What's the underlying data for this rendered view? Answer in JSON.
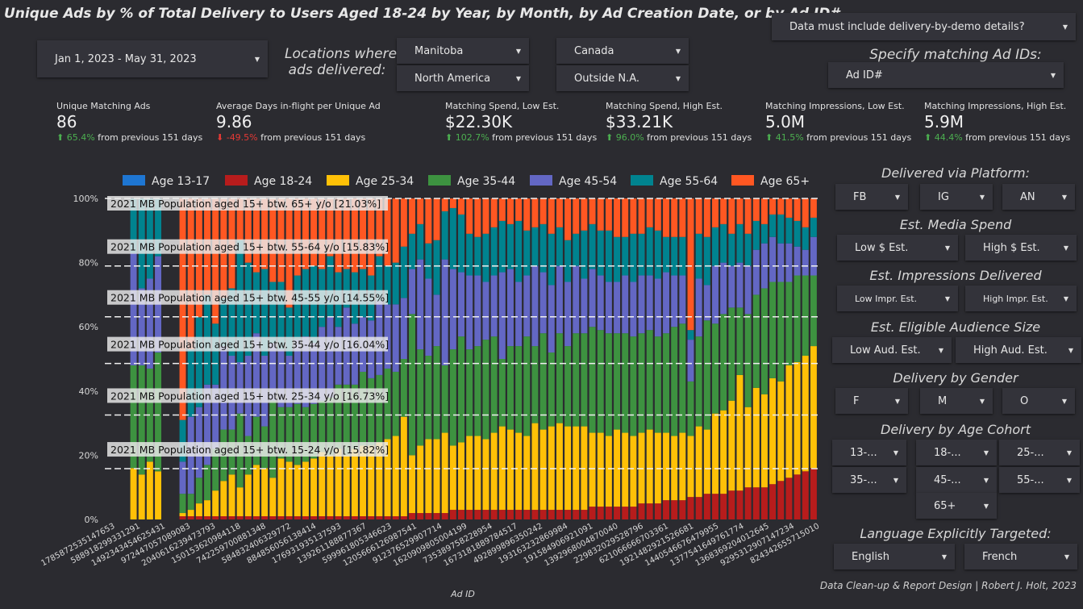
{
  "title": "Unique Ads by % of Total Delivery to Users Aged 18-24 by Year, by Month, by Ad Creation Date, or by Ad ID#",
  "date_range": "Jan 1, 2023 - May 31, 2023",
  "locations": {
    "label_line1": "Locations where",
    "label_line2": "ads delivered:",
    "manitoba": "Manitoba",
    "canada": "Canada",
    "north_america": "North America",
    "outside_na": "Outside N.A."
  },
  "demo_details": "Data must include delivery-by-demo details?",
  "ad_ids": {
    "label": "Specify matching Ad IDs:",
    "value": "Ad ID#"
  },
  "kpis": [
    {
      "label": "Unique Matching Ads",
      "value": "86",
      "dir": "up",
      "change": "65.4%",
      "suffix": "from previous 151 days"
    },
    {
      "label": "Average Days in-flight per Unique Ad",
      "value": "9.86",
      "dir": "down",
      "change": "-49.5%",
      "suffix": "from previous 151 days"
    },
    {
      "label": "Matching Spend, Low Est.",
      "value": "$22.30K",
      "dir": "up",
      "change": "102.7%",
      "suffix": "from previous 151 days"
    },
    {
      "label": "Matching Spend, High Est.",
      "value": "$33.21K",
      "dir": "up",
      "change": "96.0%",
      "suffix": "from previous 151 days"
    },
    {
      "label": "Matching Impressions, Low Est.",
      "value": "5.0M",
      "dir": "up",
      "change": "41.5%",
      "suffix": "from previous 151 days"
    },
    {
      "label": "Matching Impressions, High Est.",
      "value": "5.9M",
      "dir": "up",
      "change": "44.4%",
      "suffix": "from previous 151 days"
    }
  ],
  "colors": {
    "Age 13-17": "#1e76d2",
    "Age 18-24": "#b71c1c",
    "Age 25-34": "#ffc107",
    "Age 35-44": "#3d9240",
    "Age 45-54": "#6367c4",
    "Age 55-64": "#00838f",
    "Age 65+": "#ff5722"
  },
  "filters": {
    "platform": {
      "label": "Delivered via Platform:",
      "opts": [
        "FB",
        "IG",
        "AN"
      ]
    },
    "spend": {
      "label": "Est. Media Spend",
      "opts": [
        "Low $ Est.",
        "High $ Est."
      ]
    },
    "impressions": {
      "label": "Est. Impressions Delivered",
      "opts": [
        "Low Impr. Est.",
        "High Impr. Est."
      ]
    },
    "audience": {
      "label": "Est. Eligible Audience Size",
      "opts": [
        "Low Aud. Est.",
        "High Aud. Est."
      ]
    },
    "gender": {
      "label": "Delivery by Gender",
      "opts": [
        "F",
        "M",
        "O"
      ]
    },
    "age": {
      "label": "Delivery by Age Cohort",
      "opts": [
        "13-...",
        "18-...",
        "25-...",
        "35-...",
        "45-...",
        "55-...",
        "65+"
      ]
    },
    "language": {
      "label": "Language Explicitly Targeted:",
      "opts": [
        "English",
        "French"
      ]
    }
  },
  "footer": "Data Clean-up & Report Design | Robert J. Holt, 2023",
  "chart_data": {
    "type": "bar",
    "stacked": true,
    "normalized": true,
    "xlabel": "Ad ID",
    "ylabel": "",
    "ylim": [
      0,
      100
    ],
    "y_ticks": [
      "0%",
      "20%",
      "40%",
      "60%",
      "80%",
      "100%"
    ],
    "legend_position": "top",
    "series_names": [
      "Age 13-17",
      "Age 18-24",
      "Age 25-34",
      "Age 35-44",
      "Age 45-54",
      "Age 55-64",
      "Age 65+"
    ],
    "x_tick_labels": [
      "178587253514765​3",
      "588918299331291",
      "149234345462543​1",
      "972447057089083",
      "204061623947379​3",
      "150153620984118",
      "742259700881348",
      "584832406329772",
      "884856056138414",
      "176931935137593",
      "139261188877367",
      "599961805346623",
      "120566612698754​1",
      "912376529907714",
      "162090980500419​9",
      "735389758228954",
      "167318188978451​7",
      "492899896350242",
      "193163232869984",
      "191584906921091",
      "139296800487004​0",
      "229832029528796",
      "621066666703361",
      "192148292152668​1",
      "144054667647995​5",
      "137754164976177​4",
      "136836920401264​5",
      "929531290714723​4",
      "824342655715010"
    ],
    "reference_lines": [
      {
        "label": "2021 MB Population aged 15+ btw. 65+ y/o [21.03%]",
        "y": 100
      },
      {
        "label": "2021 MB Population aged 15+ btw. 55-64 y/o [15.83%]",
        "y": 78.97
      },
      {
        "label": "2021 MB Population aged 15+ btw. 45-55 y/o [14.55%]",
        "y": 63.14
      },
      {
        "label": "2021 MB Population aged 15+ btw. 35-44 y/o [16.04%]",
        "y": 48.59
      },
      {
        "label": "2021 MB Population aged 15+ btw. 25-34 y/o [16.73%]",
        "y": 32.55
      },
      {
        "label": "2021 MB Population aged 15+ btw. 15-24 y/o [15.82%]",
        "y": 15.82
      }
    ],
    "bars": [
      [
        0,
        0,
        0,
        0,
        0,
        0,
        0
      ],
      [
        0,
        0,
        0,
        0,
        0,
        0,
        0
      ],
      [
        0,
        0,
        0,
        0,
        0,
        0,
        0
      ],
      [
        0,
        0,
        16,
        32,
        35,
        17,
        0
      ],
      [
        0,
        0,
        14,
        34,
        24,
        28,
        0
      ],
      [
        0,
        0,
        18,
        29,
        28,
        25,
        0
      ],
      [
        0,
        0,
        15,
        37,
        30,
        18,
        0
      ],
      [
        0,
        0,
        0,
        0,
        0,
        0,
        0
      ],
      [
        0,
        0,
        0,
        0,
        0,
        0,
        0
      ],
      [
        0,
        1,
        1,
        6,
        10,
        13,
        69
      ],
      [
        0,
        1,
        2,
        5,
        24,
        21,
        47
      ],
      [
        0,
        1,
        4,
        8,
        22,
        28,
        37
      ],
      [
        0,
        1,
        5,
        11,
        25,
        28,
        30
      ],
      [
        0,
        1,
        8,
        13,
        20,
        19,
        39
      ],
      [
        0,
        1,
        11,
        16,
        26,
        15,
        31
      ],
      [
        0,
        1,
        13,
        14,
        23,
        21,
        28
      ],
      [
        0,
        1,
        9,
        23,
        16,
        38,
        13
      ],
      [
        0,
        1,
        13,
        12,
        25,
        29,
        20
      ],
      [
        0,
        1,
        16,
        15,
        26,
        19,
        23
      ],
      [
        0,
        1,
        15,
        13,
        22,
        27,
        22
      ],
      [
        0,
        1,
        12,
        24,
        18,
        19,
        26
      ],
      [
        0,
        1,
        18,
        16,
        18,
        21,
        26
      ],
      [
        0,
        1,
        17,
        17,
        16,
        15,
        34
      ],
      [
        0,
        1,
        16,
        19,
        20,
        20,
        24
      ],
      [
        0,
        1,
        17,
        17,
        22,
        21,
        22
      ],
      [
        0,
        1,
        18,
        17,
        19,
        24,
        21
      ],
      [
        0,
        1,
        20,
        16,
        23,
        18,
        22
      ],
      [
        0,
        1,
        19,
        18,
        25,
        19,
        18
      ],
      [
        0,
        1,
        21,
        20,
        18,
        17,
        23
      ],
      [
        0,
        1,
        19,
        22,
        24,
        12,
        22
      ],
      [
        0,
        1,
        21,
        20,
        19,
        16,
        23
      ],
      [
        0,
        1,
        22,
        23,
        17,
        15,
        22
      ],
      [
        0,
        1,
        22,
        21,
        18,
        14,
        24
      ],
      [
        0,
        1,
        23,
        21,
        23,
        14,
        18
      ],
      [
        0,
        1,
        24,
        22,
        20,
        12,
        21
      ],
      [
        0,
        1,
        25,
        20,
        21,
        13,
        20
      ],
      [
        0,
        1,
        31,
        18,
        19,
        16,
        15
      ],
      [
        0,
        2,
        18,
        44,
        14,
        11,
        11
      ],
      [
        0,
        2,
        21,
        30,
        28,
        11,
        8
      ],
      [
        0,
        2,
        23,
        26,
        24,
        11,
        14
      ],
      [
        0,
        2,
        23,
        29,
        16,
        17,
        13
      ],
      [
        0,
        2,
        25,
        21,
        33,
        15,
        4
      ],
      [
        0,
        3,
        20,
        30,
        25,
        19,
        3
      ],
      [
        0,
        3,
        21,
        33,
        20,
        18,
        5
      ],
      [
        0,
        3,
        23,
        27,
        23,
        13,
        11
      ],
      [
        0,
        3,
        23,
        28,
        22,
        12,
        12
      ],
      [
        0,
        3,
        22,
        31,
        18,
        15,
        11
      ],
      [
        0,
        3,
        24,
        30,
        19,
        15,
        9
      ],
      [
        0,
        3,
        26,
        21,
        27,
        16,
        7
      ],
      [
        0,
        3,
        25,
        26,
        24,
        14,
        8
      ],
      [
        0,
        3,
        24,
        27,
        20,
        19,
        7
      ],
      [
        0,
        3,
        23,
        31,
        19,
        14,
        10
      ],
      [
        0,
        3,
        27,
        24,
        25,
        12,
        9
      ],
      [
        0,
        3,
        25,
        30,
        19,
        15,
        8
      ],
      [
        0,
        3,
        26,
        23,
        21,
        16,
        11
      ],
      [
        0,
        3,
        27,
        28,
        21,
        12,
        9
      ],
      [
        0,
        3,
        26,
        25,
        20,
        13,
        13
      ],
      [
        0,
        3,
        26,
        29,
        21,
        10,
        11
      ],
      [
        0,
        3,
        26,
        29,
        17,
        15,
        10
      ],
      [
        0,
        4,
        23,
        33,
        18,
        14,
        8
      ],
      [
        0,
        4,
        23,
        32,
        17,
        14,
        10
      ],
      [
        0,
        4,
        22,
        32,
        16,
        16,
        10
      ],
      [
        0,
        4,
        24,
        30,
        16,
        14,
        12
      ],
      [
        0,
        4,
        23,
        31,
        18,
        12,
        12
      ],
      [
        0,
        4,
        22,
        31,
        17,
        15,
        11
      ],
      [
        0,
        5,
        22,
        31,
        18,
        13,
        11
      ],
      [
        0,
        5,
        23,
        31,
        17,
        15,
        9
      ],
      [
        0,
        5,
        22,
        30,
        18,
        15,
        10
      ],
      [
        0,
        6,
        21,
        31,
        19,
        11,
        12
      ],
      [
        0,
        6,
        20,
        34,
        16,
        12,
        12
      ],
      [
        0,
        6,
        21,
        34,
        15,
        12,
        12
      ],
      [
        0,
        7,
        19,
        17,
        13,
        3,
        41
      ],
      [
        0,
        7,
        22,
        28,
        18,
        14,
        11
      ],
      [
        0,
        8,
        20,
        34,
        11,
        15,
        12
      ],
      [
        0,
        8,
        25,
        28,
        18,
        12,
        9
      ],
      [
        0,
        8,
        26,
        30,
        16,
        12,
        8
      ],
      [
        0,
        9,
        28,
        29,
        13,
        10,
        11
      ],
      [
        0,
        9,
        36,
        21,
        14,
        12,
        8
      ],
      [
        0,
        10,
        25,
        29,
        15,
        10,
        11
      ],
      [
        0,
        10,
        31,
        29,
        14,
        9,
        7
      ],
      [
        0,
        10,
        29,
        33,
        14,
        6,
        8
      ],
      [
        0,
        11,
        33,
        30,
        14,
        7,
        5
      ],
      [
        0,
        12,
        31,
        31,
        12,
        9,
        5
      ],
      [
        0,
        13,
        35,
        26,
        12,
        8,
        6
      ],
      [
        0,
        14,
        35,
        27,
        9,
        8,
        7
      ],
      [
        0,
        15,
        36,
        25,
        8,
        7,
        9
      ],
      [
        0,
        16,
        38,
        22,
        12,
        6,
        6
      ]
    ]
  }
}
